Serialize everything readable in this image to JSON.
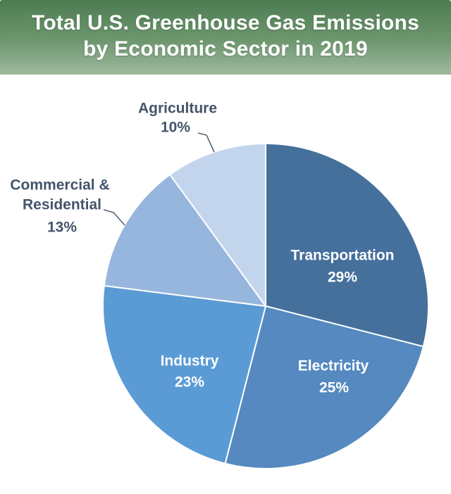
{
  "header": {
    "title_line1": "Total U.S. Greenhouse Gas Emissions",
    "title_line2": "by Economic Sector in 2019",
    "background_top_color": "#4d7c51",
    "background_bottom_color": "#9eba9e",
    "text_color": "#ffffff"
  },
  "chart_data": {
    "type": "pie",
    "title": "Total U.S. Greenhouse Gas Emissions by Economic Sector in 2019",
    "unit": "percent",
    "start_angle_deg": 0,
    "direction": "clockwise",
    "legend": "none",
    "categories": [
      "Transportation",
      "Electricity",
      "Industry",
      "Commercial & Residential",
      "Agriculture"
    ],
    "values": [
      29,
      25,
      23,
      13,
      10
    ],
    "sectors": [
      {
        "label": "Transportation",
        "value": 29,
        "pct_text": "29%",
        "color": "#45709c",
        "label_placement": "inside",
        "label_lines": [
          "Transportation",
          "29%"
        ]
      },
      {
        "label": "Electricity",
        "value": 25,
        "pct_text": "25%",
        "color": "#5589bf",
        "label_placement": "inside",
        "label_lines": [
          "Electricity",
          "25%"
        ]
      },
      {
        "label": "Industry",
        "value": 23,
        "pct_text": "23%",
        "color": "#5b9bd5",
        "label_placement": "inside",
        "label_lines": [
          "Industry",
          "23%"
        ]
      },
      {
        "label": "Commercial & Residential",
        "value": 13,
        "pct_text": "13%",
        "color": "#97b6de",
        "label_placement": "outside",
        "label_lines": [
          "Commercial &",
          "Residential",
          "13%"
        ]
      },
      {
        "label": "Agriculture",
        "value": 10,
        "pct_text": "10%",
        "color": "#c3d5ed",
        "label_placement": "outside",
        "label_lines": [
          "Agriculture",
          "10%"
        ]
      }
    ],
    "inside_label_color": "#ffffff",
    "outside_label_color": "#44546a",
    "leader_line_color": "#596273",
    "slice_border_color": "#ffffff"
  }
}
